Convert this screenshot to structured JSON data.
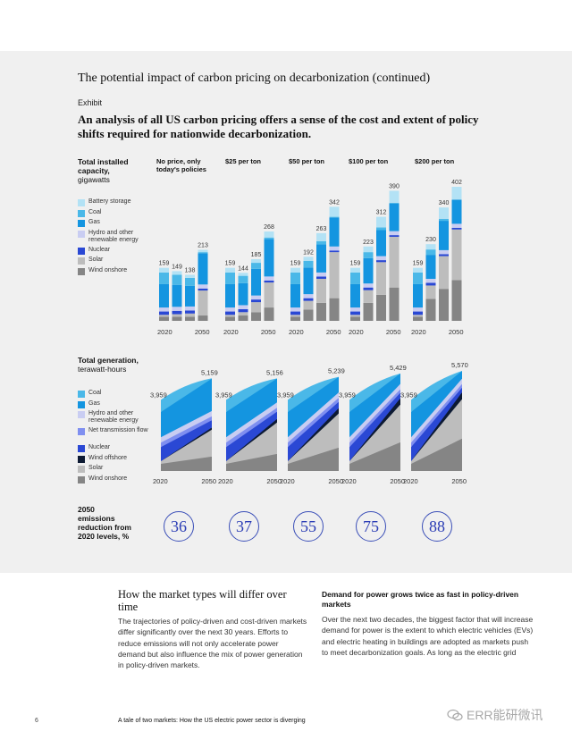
{
  "header": {
    "title": "The potential impact of carbon pricing on decarbonization (continued)",
    "exhibit": "Exhibit",
    "subtitle": "An analysis of all US carbon pricing offers a sense of the cost and extent of policy shifts required for nationwide decarbonization."
  },
  "capacity": {
    "label_bold": "Total installed capacity,",
    "label_unit": "gigawatts",
    "legend": [
      {
        "name": "Battery storage",
        "color": "#b3e2f5"
      },
      {
        "name": "Coal",
        "color": "#4ab8e8"
      },
      {
        "name": "Gas",
        "color": "#1495e0"
      },
      {
        "name": "Hydro and other renewable energy",
        "color": "#c9cdf2"
      },
      {
        "name": "Nuclear",
        "color": "#2a48d4"
      },
      {
        "name": "Solar",
        "color": "#bdbdbd"
      },
      {
        "name": "Wind onshore",
        "color": "#858585"
      }
    ]
  },
  "generation": {
    "label_bold": "Total generation,",
    "label_unit": "terawatt-hours",
    "legend": [
      {
        "name": "Coal",
        "color": "#4ab8e8"
      },
      {
        "name": "Gas",
        "color": "#1495e0"
      },
      {
        "name": "Hydro and other renewable energy",
        "color": "#c9cdf2"
      },
      {
        "name": "Net transmission flow",
        "color": "#7f8ff0"
      },
      {
        "name": "Nuclear",
        "color": "#2a48d4"
      },
      {
        "name": "Wind offshore",
        "color": "#0d1a33"
      },
      {
        "name": "Solar",
        "color": "#bdbdbd"
      },
      {
        "name": "Wind onshore",
        "color": "#858585"
      }
    ]
  },
  "emissions": {
    "label": "2050 emissions reduction from 2020 levels, %"
  },
  "chart_data": [
    {
      "type": "bar",
      "stacked": true,
      "title": "Total installed capacity, gigawatts",
      "xlabel_start": "2020",
      "xlabel_end": "2050",
      "series_names": [
        "Wind onshore",
        "Solar",
        "Nuclear",
        "Hydro and other renewable energy",
        "Gas",
        "Coal",
        "Battery storage"
      ],
      "scenarios": [
        {
          "label": "No price, only today's policies",
          "totals": [
            159,
            149,
            138,
            213
          ],
          "stacks": [
            [
              12,
              6,
              10,
              12,
              70,
              35,
              14
            ],
            [
              12,
              8,
              10,
              12,
              66,
              30,
              11
            ],
            [
              12,
              10,
              9,
              12,
              62,
              24,
              9
            ],
            [
              16,
              75,
              6,
              12,
              94,
              3,
              7
            ]
          ]
        },
        {
          "label": "$25 per ton",
          "totals": [
            159,
            144,
            185,
            268
          ],
          "stacks": [
            [
              12,
              6,
              10,
              12,
              70,
              35,
              14
            ],
            [
              16,
              10,
              9,
              12,
              66,
              22,
              9
            ],
            [
              26,
              30,
              8,
              12,
              80,
              18,
              11
            ],
            [
              40,
              75,
              6,
              12,
              112,
              5,
              18
            ]
          ]
        },
        {
          "label": "$50 per ton",
          "totals": [
            159,
            192,
            263,
            342
          ],
          "stacks": [
            [
              12,
              6,
              10,
              12,
              70,
              35,
              14
            ],
            [
              34,
              26,
              8,
              12,
              80,
              20,
              12
            ],
            [
              54,
              72,
              7,
              12,
              84,
              10,
              24
            ],
            [
              68,
              138,
              5,
              12,
              87,
              2,
              30
            ]
          ]
        },
        {
          "label": "$100 per ton",
          "totals": [
            159,
            223,
            312,
            390
          ],
          "stacks": [
            [
              12,
              6,
              10,
              12,
              70,
              35,
              14
            ],
            [
              54,
              38,
              8,
              12,
              76,
              18,
              17
            ],
            [
              78,
              98,
              6,
              12,
              78,
              8,
              32
            ],
            [
              100,
              152,
              5,
              12,
              83,
              2,
              36
            ]
          ]
        },
        {
          "label": "$200 per ton",
          "totals": [
            159,
            230,
            340,
            402
          ],
          "stacks": [
            [
              12,
              6,
              10,
              12,
              70,
              35,
              14
            ],
            [
              66,
              40,
              8,
              12,
              72,
              16,
              16
            ],
            [
              96,
              98,
              6,
              12,
              88,
              6,
              34
            ],
            [
              122,
              152,
              5,
              12,
              72,
              1,
              38
            ]
          ]
        }
      ],
      "ylim": [
        0,
        420
      ]
    },
    {
      "type": "area",
      "stacked": true,
      "title": "Total generation, terawatt-hours",
      "xlabel_start": "2020",
      "xlabel_end": "2050",
      "series_names": [
        "Wind onshore",
        "Solar",
        "Wind offshore",
        "Nuclear",
        "Net transmission flow",
        "Hydro and other renewable energy",
        "Gas",
        "Coal"
      ],
      "scenarios": [
        {
          "start_total": 3959,
          "end_total": 5159,
          "start": [
            400,
            150,
            0,
            780,
            250,
            300,
            1400,
            679
          ],
          "end": [
            800,
            1500,
            120,
            400,
            220,
            300,
            1800,
            19
          ]
        },
        {
          "start_total": 3959,
          "end_total": 5156,
          "start": [
            400,
            150,
            0,
            780,
            250,
            300,
            1400,
            679
          ],
          "end": [
            950,
            1750,
            200,
            400,
            220,
            300,
            1330,
            6
          ]
        },
        {
          "start_total": 3959,
          "end_total": 5239,
          "start": [
            400,
            150,
            0,
            780,
            250,
            300,
            1400,
            679
          ],
          "end": [
            1300,
            1900,
            300,
            350,
            220,
            300,
            865,
            4
          ]
        },
        {
          "start_total": 3959,
          "end_total": 5429,
          "start": [
            400,
            150,
            0,
            780,
            250,
            300,
            1400,
            679
          ],
          "end": [
            1600,
            2100,
            350,
            300,
            200,
            300,
            577,
            2
          ]
        },
        {
          "start_total": 3959,
          "end_total": 5570,
          "start": [
            400,
            150,
            0,
            780,
            250,
            300,
            1400,
            679
          ],
          "end": [
            1800,
            2200,
            380,
            260,
            200,
            300,
            429,
            1
          ]
        }
      ],
      "ylim": [
        0,
        6000
      ]
    },
    {
      "type": "table",
      "title": "2050 emissions reduction from 2020 levels, %",
      "values": [
        36,
        37,
        55,
        75,
        88
      ]
    }
  ],
  "article": {
    "left_title": "How the market types will differ over time",
    "left_body": "The trajectories of policy-driven and cost-driven markets differ significantly over the next 30 years. Efforts to reduce emissions will not only accelerate power demand but also influence the mix of power generation in policy-driven markets.",
    "right_head": "Demand for power grows twice as fast in policy-driven markets",
    "right_body": "Over the next two decades, the biggest factor that will increase demand for power is the extent to which electric vehicles (EVs) and electric heating in buildings are adopted as markets push to meet decarbonization goals. As long as the electric grid"
  },
  "footer": {
    "page": "6",
    "text": "A tale of two markets: How the US electric power sector is diverging",
    "watermark": "ERR能研微讯"
  }
}
